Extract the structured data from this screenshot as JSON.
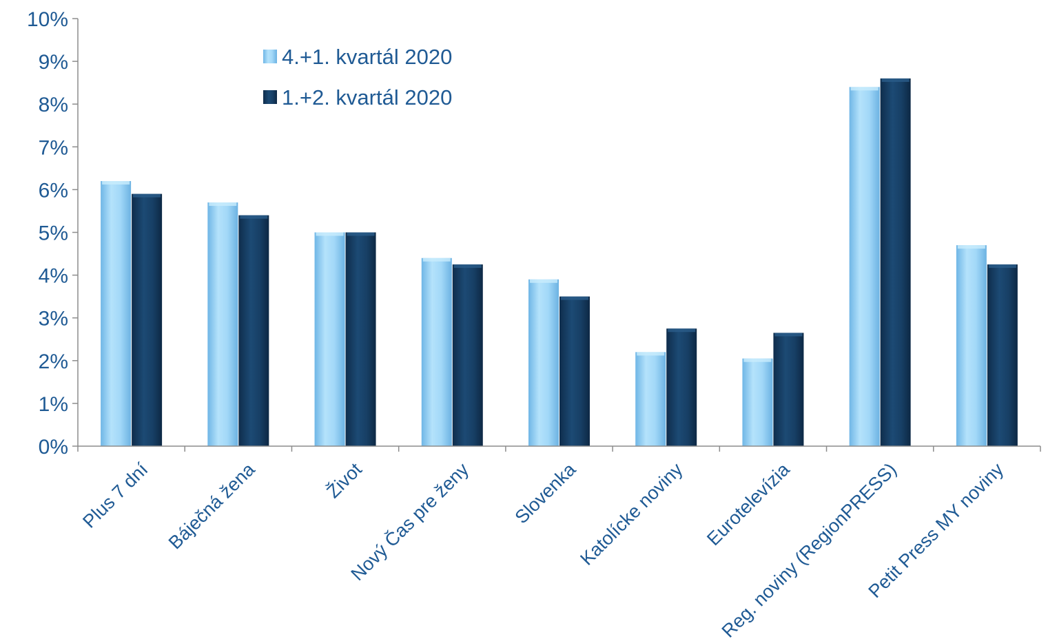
{
  "chart_data": {
    "type": "bar",
    "title": "",
    "xlabel": "",
    "ylabel": "",
    "ylim": [
      0,
      10
    ],
    "y_ticks": [
      "0%",
      "1%",
      "2%",
      "3%",
      "4%",
      "5%",
      "6%",
      "7%",
      "8%",
      "9%",
      "10%"
    ],
    "grid": false,
    "legend_position": "top-center",
    "categories": [
      "Plus 7 dní",
      "Báječná žena",
      "Život",
      "Nový Čas pre ženy",
      "Slovenka",
      "Katolícke noviny",
      "Eurotelevízia",
      "Reg. noviny (RegionPRESS)",
      "Petit Press MY noviny"
    ],
    "series": [
      {
        "name": "4.+1. kvartál 2020",
        "color": "#8fcdf5",
        "values": [
          6.2,
          5.7,
          5.0,
          4.4,
          3.9,
          2.2,
          2.05,
          8.4,
          4.7
        ]
      },
      {
        "name": "1.+2. kvartál 2020",
        "color": "#143a60",
        "values": [
          5.9,
          5.4,
          5.0,
          4.25,
          3.5,
          2.75,
          2.65,
          8.6,
          4.25
        ]
      }
    ],
    "axis_color": "#8c8c8c",
    "text_color": "#1f5a94"
  }
}
